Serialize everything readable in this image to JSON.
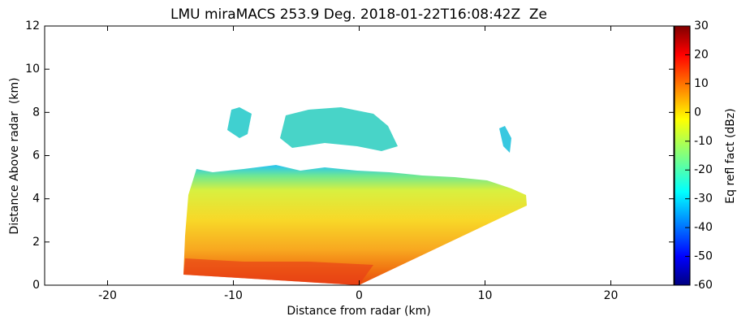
{
  "chart_data": {
    "type": "heatmap",
    "title": "LMU miraMACS 253.9 Deg. 2018-01-22T16:08:42Z  Ze",
    "x_label": "Distance from radar (km)",
    "y_label": "Distance Above radar  (km)",
    "xlim": [
      -25,
      25
    ],
    "xticks": [
      -20,
      -10,
      0,
      10,
      20
    ],
    "ylim": [
      0,
      12
    ],
    "yticks": [
      0,
      2,
      4,
      6,
      8,
      10,
      12
    ],
    "colorbar": {
      "label": "Eq refl fact (dBz)",
      "lim": [
        -60,
        30
      ],
      "ticks": [
        -60,
        -50,
        -40,
        -30,
        -20,
        -10,
        0,
        10,
        20,
        30
      ]
    }
  }
}
